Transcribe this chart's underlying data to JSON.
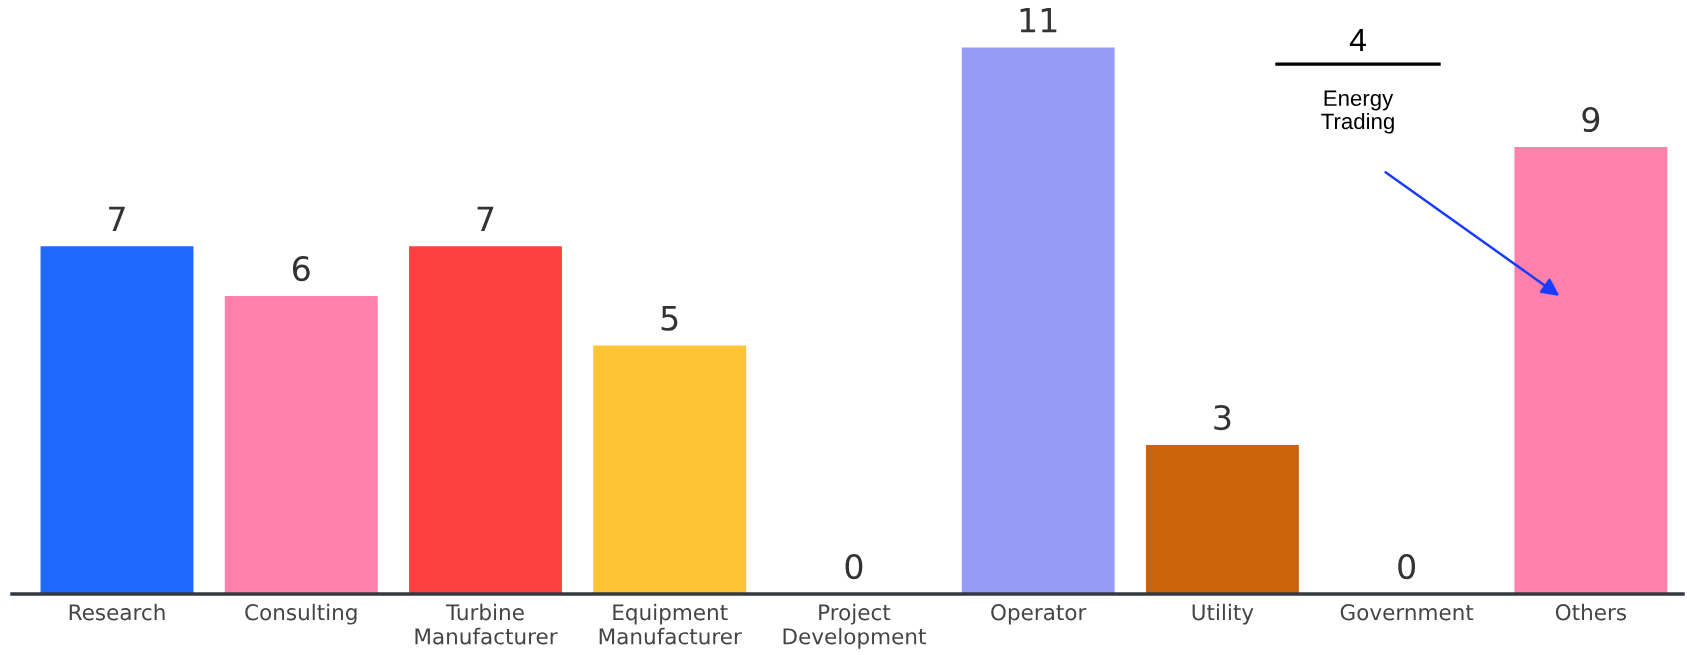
{
  "chart_data": {
    "type": "bar",
    "categories": [
      "Research",
      "Consulting",
      "Turbine\nManufacturer",
      "Equipment\nManufacturer",
      "Project\nDevelopment",
      "Operator",
      "Utility",
      "Government",
      "Others"
    ],
    "values": [
      7,
      6,
      7,
      5,
      0,
      11,
      3,
      0,
      9
    ],
    "colors": [
      "#1f69ff",
      "#ff80aa",
      "#ff4040",
      "#fdc436",
      null,
      "#969cf4",
      "#c9640c",
      null,
      "#ff80aa"
    ],
    "data_labels": true,
    "grid": false,
    "legend": false,
    "annotations": [
      "4",
      "Energy\nTrading"
    ]
  }
}
